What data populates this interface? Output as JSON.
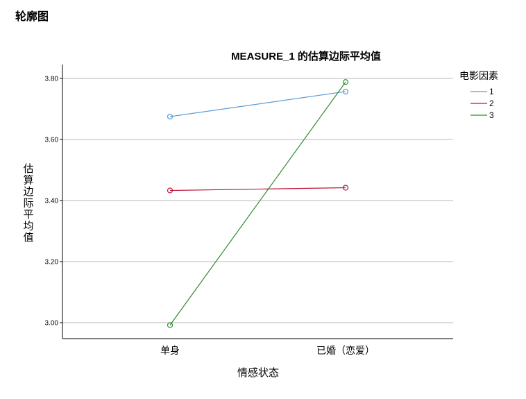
{
  "section_title": "轮廓图",
  "chart_data": {
    "type": "line",
    "title": "MEASURE_1 的估算边际平均值",
    "xlabel": "情感状态",
    "ylabel": "估算边际平均值",
    "categories": [
      "单身",
      "已婚（恋爱）"
    ],
    "ylim": [
      2.95,
      3.85
    ],
    "yticks": [
      3.0,
      3.2,
      3.4,
      3.6,
      3.8
    ],
    "ytick_labels": [
      "3.00",
      "3.20",
      "3.40",
      "3.60",
      "3.80"
    ],
    "grid": true,
    "legend_title": "电影因素",
    "legend_position": "right",
    "series": [
      {
        "name": "1",
        "values": [
          3.675,
          3.757
        ],
        "color": "#5b9bd5"
      },
      {
        "name": "2",
        "values": [
          3.433,
          3.442
        ],
        "color": "#c0143c"
      },
      {
        "name": "3",
        "values": [
          2.992,
          3.788
        ],
        "color": "#2e8b2e"
      }
    ]
  }
}
